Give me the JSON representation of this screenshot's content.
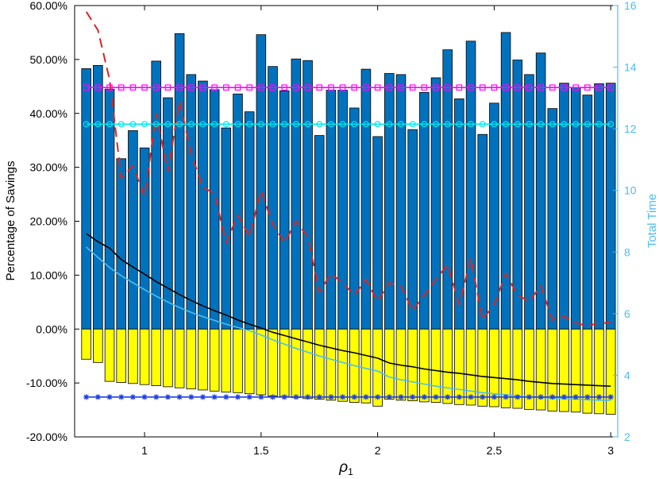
{
  "chart_data": {
    "type": "bar",
    "ylabel": "Percentage of Savings",
    "y2label": "Total Time",
    "xlabel_symbol": "ρ",
    "xlabel_subscript": "1",
    "xlim": [
      0.7,
      3.03
    ],
    "ylim": [
      -20,
      60
    ],
    "y2lim": [
      2,
      16
    ],
    "grid": false,
    "xticks": [
      1,
      1.5,
      2,
      2.5,
      3
    ],
    "xtick_labels": [
      "1",
      "1.5",
      "2",
      "2.5",
      "3"
    ],
    "yticks": [
      -20,
      -10,
      0,
      10,
      20,
      30,
      40,
      50,
      60
    ],
    "ytick_labels": [
      "-20.00%",
      "-10.00%",
      "0.00%",
      "10.00%",
      "20.00%",
      "30.00%",
      "40.00%",
      "50.00%",
      "60.00%"
    ],
    "y2ticks": [
      2,
      4,
      6,
      8,
      10,
      12,
      14,
      16
    ],
    "y2tick_labels": [
      "2",
      "4",
      "6",
      "8",
      "10",
      "12",
      "14",
      "16"
    ],
    "x": [
      0.75,
      0.8,
      0.85,
      0.9,
      0.95,
      1,
      1.05,
      1.1,
      1.15,
      1.2,
      1.25,
      1.3,
      1.35,
      1.4,
      1.45,
      1.5,
      1.55,
      1.6,
      1.65,
      1.7,
      1.75,
      1.8,
      1.85,
      1.9,
      1.95,
      2,
      2.05,
      2.1,
      2.15,
      2.2,
      2.25,
      2.3,
      2.35,
      2.4,
      2.45,
      2.5,
      2.55,
      2.6,
      2.65,
      2.7,
      2.75,
      2.8,
      2.85,
      2.9,
      2.95,
      3
    ],
    "series": [
      {
        "kind": "bar",
        "axis": "left",
        "color": "#0072bd",
        "values": [
          48.3,
          48.9,
          44.5,
          31.6,
          36.8,
          33.6,
          49.7,
          42.9,
          54.8,
          47.2,
          46.0,
          44.4,
          37.3,
          43.6,
          40.3,
          54.6,
          48.7,
          44.2,
          50.1,
          49.8,
          35.9,
          44.3,
          44.3,
          41.0,
          48.2,
          35.7,
          47.4,
          47.2,
          37.0,
          43.9,
          46.6,
          51.8,
          42.7,
          53.4,
          36.1,
          41.9,
          55.0,
          49.9,
          47.2,
          51.2,
          40.9,
          45.6,
          44.8,
          43.4,
          45.5,
          45.6
        ]
      },
      {
        "kind": "bar",
        "axis": "left",
        "color": "#ffff00",
        "values": [
          -5.6,
          -6.2,
          -9.7,
          -9.9,
          -10.1,
          -10.3,
          -10.5,
          -10.7,
          -10.9,
          -11.1,
          -11.3,
          -11.5,
          -11.7,
          -11.8,
          -12.0,
          -12.2,
          -12.4,
          -12.5,
          -12.7,
          -12.9,
          -13.0,
          -13.2,
          -13.4,
          -13.6,
          -13.7,
          -14.3,
          -13.0,
          -13.2,
          -13.3,
          -13.5,
          -13.6,
          -13.8,
          -14.0,
          -14.1,
          -14.3,
          -14.4,
          -14.6,
          -14.7,
          -14.9,
          -15.0,
          -15.2,
          -15.3,
          -15.4,
          -15.6,
          -15.7,
          -15.8
        ]
      },
      {
        "kind": "line",
        "axis": "right",
        "color": "#d62728",
        "dash": "dashed",
        "x": [
          0.75,
          0.8,
          0.85,
          0.9,
          0.95,
          1,
          1.05,
          1.1,
          1.15,
          1.2,
          1.25,
          1.3,
          1.35,
          1.4,
          1.45,
          1.5,
          1.55,
          1.6,
          1.65,
          1.7,
          1.75,
          1.8,
          1.85,
          1.9,
          1.95,
          2,
          2.05,
          2.1,
          2.15,
          2.2,
          2.25,
          2.3,
          2.35,
          2.4,
          2.45,
          2.5,
          2.55,
          2.6,
          2.65,
          2.7,
          2.75,
          2.8,
          2.85,
          2.9,
          2.95,
          3
        ],
        "values": [
          15.8,
          15.2,
          13.6,
          10.4,
          10.8,
          9.8,
          12.5,
          10.6,
          12.9,
          11.2,
          10.1,
          9.9,
          8.3,
          9.2,
          8.5,
          10.0,
          8.9,
          8.3,
          9.0,
          8.5,
          6.7,
          7.3,
          7.0,
          6.6,
          7.1,
          6.4,
          7.0,
          6.9,
          6.1,
          6.6,
          7.1,
          7.6,
          6.3,
          7.8,
          5.8,
          6.3,
          7.3,
          6.6,
          6.4,
          6.9,
          5.8,
          5.9,
          5.7,
          5.6,
          5.7,
          5.7
        ]
      },
      {
        "kind": "line",
        "axis": "left",
        "color": "#000000",
        "x": [
          0.75,
          0.8,
          0.85,
          0.9,
          0.95,
          1,
          1.05,
          1.1,
          1.15,
          1.2,
          1.25,
          1.3,
          1.35,
          1.4,
          1.45,
          1.5,
          1.55,
          1.6,
          1.65,
          1.7,
          1.75,
          1.8,
          1.85,
          1.9,
          1.95,
          2,
          2.05,
          2.1,
          2.15,
          2.2,
          2.25,
          2.3,
          2.35,
          2.4,
          2.45,
          2.5,
          2.55,
          2.6,
          2.65,
          2.7,
          2.75,
          2.8,
          2.85,
          2.9,
          2.95,
          3
        ],
        "values": [
          17.7,
          16.2,
          15.0,
          12.9,
          11.5,
          10.2,
          8.8,
          7.6,
          6.4,
          5.3,
          4.3,
          3.4,
          2.6,
          1.7,
          0.9,
          0.2,
          -0.6,
          -1.2,
          -1.8,
          -2.4,
          -3.0,
          -3.5,
          -4.0,
          -4.4,
          -4.9,
          -5.4,
          -6.3,
          -6.7,
          -7.0,
          -7.4,
          -7.7,
          -8.0,
          -8.2,
          -8.5,
          -8.8,
          -9.0,
          -9.2,
          -9.4,
          -9.7,
          -9.9,
          -10.1,
          -10.2,
          -10.3,
          -10.4,
          -10.5,
          -10.6
        ]
      },
      {
        "kind": "line",
        "axis": "left",
        "color": "#4dbeee",
        "x": [
          0.75,
          0.8,
          0.85,
          0.9,
          0.95,
          1,
          1.05,
          1.1,
          1.15,
          1.2,
          1.25,
          1.3,
          1.35,
          1.4,
          1.45,
          1.5,
          1.55,
          1.6,
          1.65,
          1.7,
          1.75,
          1.8,
          1.85,
          1.9,
          1.95,
          2,
          2.05,
          2.1,
          2.15,
          2.2,
          2.25,
          2.3,
          2.35,
          2.4,
          2.45,
          2.5,
          2.55,
          2.6,
          2.65,
          2.7,
          2.75,
          2.8,
          2.85,
          2.9,
          2.95,
          3
        ],
        "values": [
          15.2,
          13.3,
          11.4,
          9.9,
          8.6,
          7.3,
          6.1,
          5.0,
          4.0,
          3.1,
          2.3,
          1.6,
          0.9,
          0.3,
          -0.3,
          -1.1,
          -2.0,
          -2.8,
          -3.6,
          -4.3,
          -5.0,
          -5.6,
          -6.2,
          -6.8,
          -7.3,
          -7.8,
          -8.9,
          -9.4,
          -9.8,
          -10.2,
          -10.6,
          -10.9,
          -11.2,
          -11.5,
          -11.8,
          -12.0,
          -12.2,
          -12.4,
          -12.6,
          -12.7,
          -12.8,
          -12.9,
          -13.0,
          -13.1,
          -13.2,
          -13.2
        ]
      },
      {
        "kind": "line",
        "axis": "left",
        "color": "#ff00ff",
        "marker": "square",
        "x": [
          0.75,
          0.8,
          0.85,
          0.9,
          0.95,
          1,
          1.05,
          1.1,
          1.15,
          1.2,
          1.25,
          1.3,
          1.35,
          1.4,
          1.45,
          1.5,
          1.55,
          1.6,
          1.65,
          1.7,
          1.75,
          1.8,
          1.85,
          1.9,
          1.95,
          2,
          2.05,
          2.1,
          2.15,
          2.2,
          2.25,
          2.3,
          2.35,
          2.4,
          2.45,
          2.5,
          2.55,
          2.6,
          2.65,
          2.7,
          2.75,
          2.8,
          2.85,
          2.9,
          2.95,
          3
        ],
        "values": [
          44.8,
          44.8,
          44.8,
          44.8,
          44.8,
          44.8,
          44.8,
          44.8,
          44.8,
          44.8,
          44.8,
          44.8,
          44.8,
          44.8,
          44.8,
          44.8,
          44.8,
          44.8,
          44.8,
          44.8,
          44.8,
          44.8,
          44.8,
          44.8,
          44.8,
          44.8,
          44.8,
          44.8,
          44.8,
          44.8,
          44.8,
          44.8,
          44.8,
          44.8,
          44.8,
          44.8,
          44.8,
          44.8,
          44.8,
          44.8,
          44.8,
          44.8,
          44.8,
          44.8,
          44.8,
          44.8
        ]
      },
      {
        "kind": "line",
        "axis": "left",
        "color": "#00e5ee",
        "marker": "circle",
        "x": [
          0.75,
          0.8,
          0.85,
          0.9,
          0.95,
          1,
          1.05,
          1.1,
          1.15,
          1.2,
          1.25,
          1.3,
          1.35,
          1.4,
          1.45,
          1.5,
          1.55,
          1.6,
          1.65,
          1.7,
          1.75,
          1.8,
          1.85,
          1.9,
          1.95,
          2,
          2.05,
          2.1,
          2.15,
          2.2,
          2.25,
          2.3,
          2.35,
          2.4,
          2.45,
          2.5,
          2.55,
          2.6,
          2.65,
          2.7,
          2.75,
          2.8,
          2.85,
          2.9,
          2.95,
          3
        ],
        "values": [
          38.0,
          38.0,
          38.0,
          38.0,
          38.0,
          38.0,
          38.0,
          38.0,
          38.0,
          38.0,
          38.0,
          38.0,
          38.0,
          38.0,
          38.0,
          38.0,
          38.0,
          38.0,
          38.0,
          38.0,
          38.0,
          38.0,
          38.0,
          38.0,
          38.0,
          38.0,
          38.0,
          38.0,
          38.0,
          38.0,
          38.0,
          38.0,
          38.0,
          38.0,
          38.0,
          38.0,
          38.0,
          38.0,
          38.0,
          38.0,
          38.0,
          38.0,
          38.0,
          38.0,
          38.0,
          38.0
        ]
      },
      {
        "kind": "line",
        "axis": "left",
        "color": "#1f3fe0",
        "marker": "asterisk",
        "x": [
          0.75,
          0.8,
          0.85,
          0.9,
          0.95,
          1,
          1.05,
          1.1,
          1.15,
          1.2,
          1.25,
          1.3,
          1.35,
          1.4,
          1.45,
          1.5,
          1.55,
          1.6,
          1.65,
          1.7,
          1.75,
          1.8,
          1.85,
          1.9,
          1.95,
          2,
          2.05,
          2.1,
          2.15,
          2.2,
          2.25,
          2.3,
          2.35,
          2.4,
          2.45,
          2.5,
          2.55,
          2.6,
          2.65,
          2.7,
          2.75,
          2.8,
          2.85,
          2.9,
          2.95,
          3
        ],
        "values": [
          -12.6,
          -12.6,
          -12.6,
          -12.6,
          -12.6,
          -12.6,
          -12.6,
          -12.6,
          -12.6,
          -12.6,
          -12.6,
          -12.6,
          -12.6,
          -12.6,
          -12.6,
          -12.6,
          -12.6,
          -12.6,
          -12.6,
          -12.6,
          -12.6,
          -12.6,
          -12.6,
          -12.6,
          -12.6,
          -12.6,
          -12.6,
          -12.6,
          -12.6,
          -12.6,
          -12.6,
          -12.6,
          -12.6,
          -12.6,
          -12.6,
          -12.6,
          -12.6,
          -12.6,
          -12.6,
          -12.6,
          -12.6,
          -12.6,
          -12.6,
          -12.6,
          -12.6,
          -12.6
        ]
      }
    ]
  }
}
